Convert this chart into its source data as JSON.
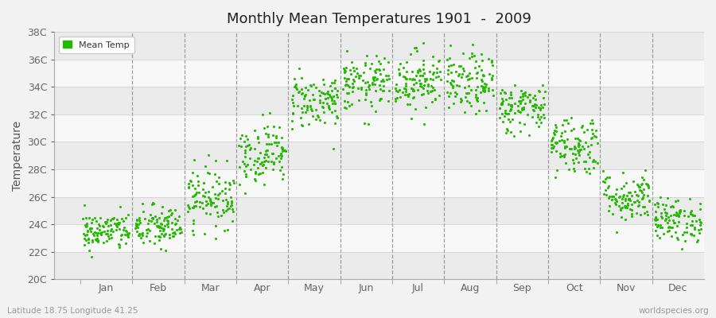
{
  "title": "Monthly Mean Temperatures 1901  -  2009",
  "ylabel": "Temperature",
  "subtitle_left": "Latitude 18.75 Longitude 41.25",
  "subtitle_right": "worldspecies.org",
  "legend_label": "Mean Temp",
  "marker_color": "#22BB00",
  "background_color": "#F2F2F2",
  "band_colors": [
    "#EBEBEB",
    "#F8F8F8"
  ],
  "ylim": [
    20,
    38
  ],
  "ytick_labels": [
    "20C",
    "22C",
    "24C",
    "26C",
    "28C",
    "30C",
    "32C",
    "34C",
    "36C",
    "38C"
  ],
  "ytick_values": [
    20,
    22,
    24,
    26,
    28,
    30,
    32,
    34,
    36,
    38
  ],
  "months": [
    "Jan",
    "Feb",
    "Mar",
    "Apr",
    "May",
    "Jun",
    "Jul",
    "Aug",
    "Sep",
    "Oct",
    "Nov",
    "Dec"
  ],
  "monthly_means": [
    23.5,
    23.8,
    26.0,
    29.2,
    33.0,
    34.2,
    34.5,
    34.2,
    32.5,
    29.8,
    26.0,
    24.3
  ],
  "monthly_stds": [
    0.7,
    0.8,
    1.1,
    1.1,
    1.0,
    1.0,
    1.1,
    1.1,
    0.9,
    1.1,
    0.9,
    0.8
  ],
  "n_years": 109,
  "seed": 42
}
